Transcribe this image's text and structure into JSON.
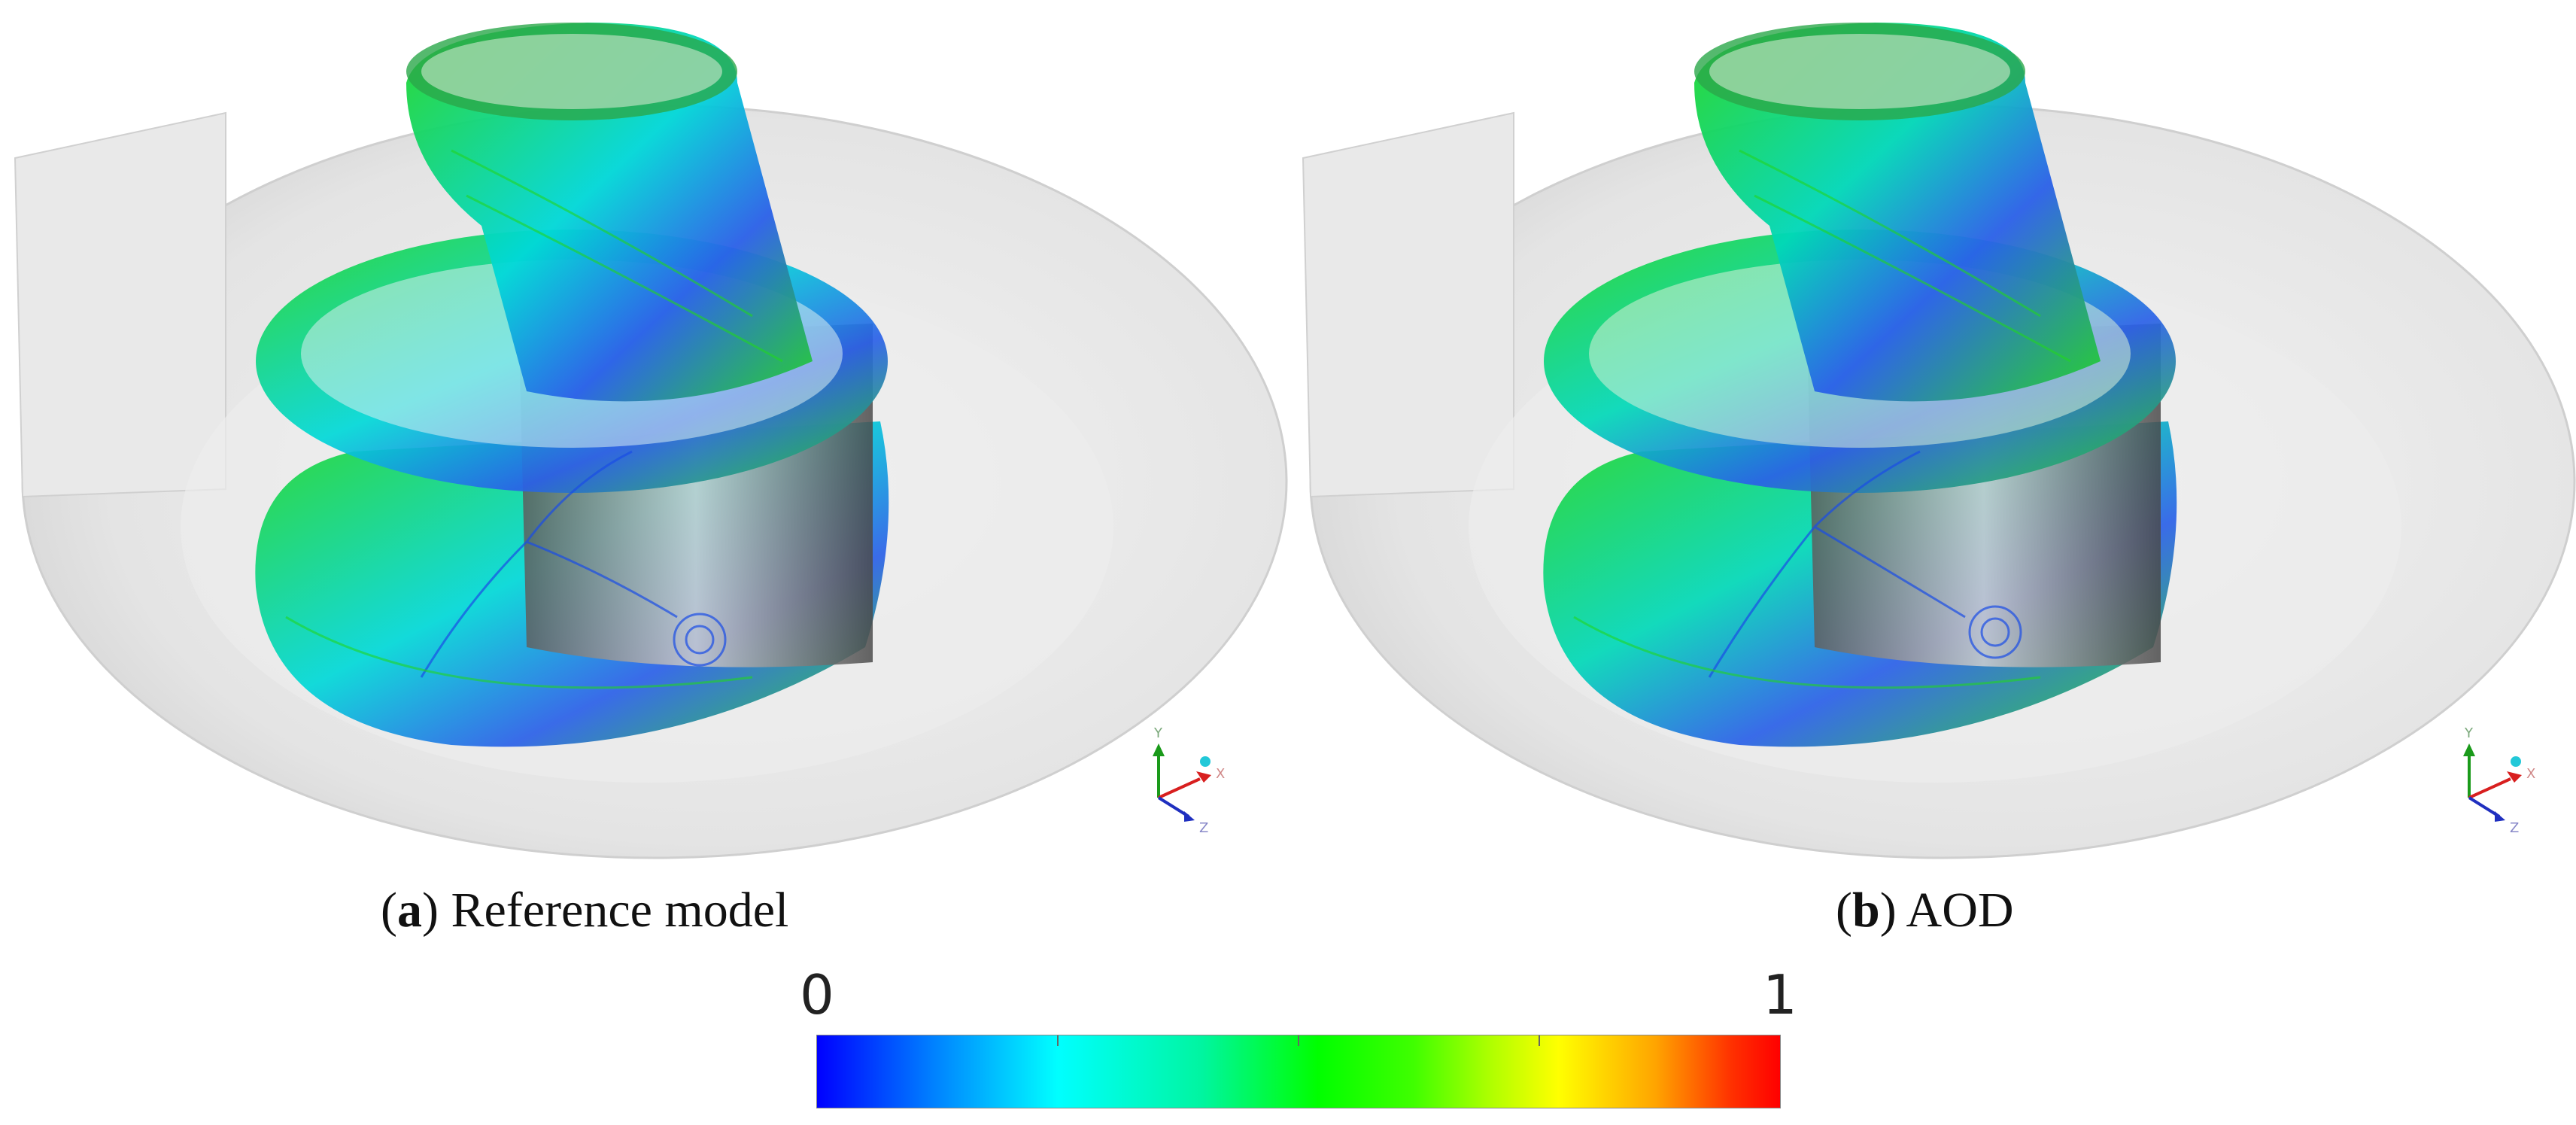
{
  "panels": [
    {
      "id": "a",
      "letter": "a",
      "label": "Reference model"
    },
    {
      "id": "b",
      "letter": "b",
      "label": "AOD"
    }
  ],
  "colorbar": {
    "min_label": "0",
    "max_label": "1",
    "colors": [
      "#0000ff",
      "#00ffff",
      "#00ff00",
      "#ffff00",
      "#ff0000"
    ]
  },
  "axis_labels": {
    "y": "Y",
    "x": "X",
    "z": "Z"
  },
  "colors": {
    "streamline_blue": "#1a4de6",
    "streamline_cyan": "#00d8d8",
    "streamline_green": "#22d522",
    "casing": "#e6e6e6"
  }
}
